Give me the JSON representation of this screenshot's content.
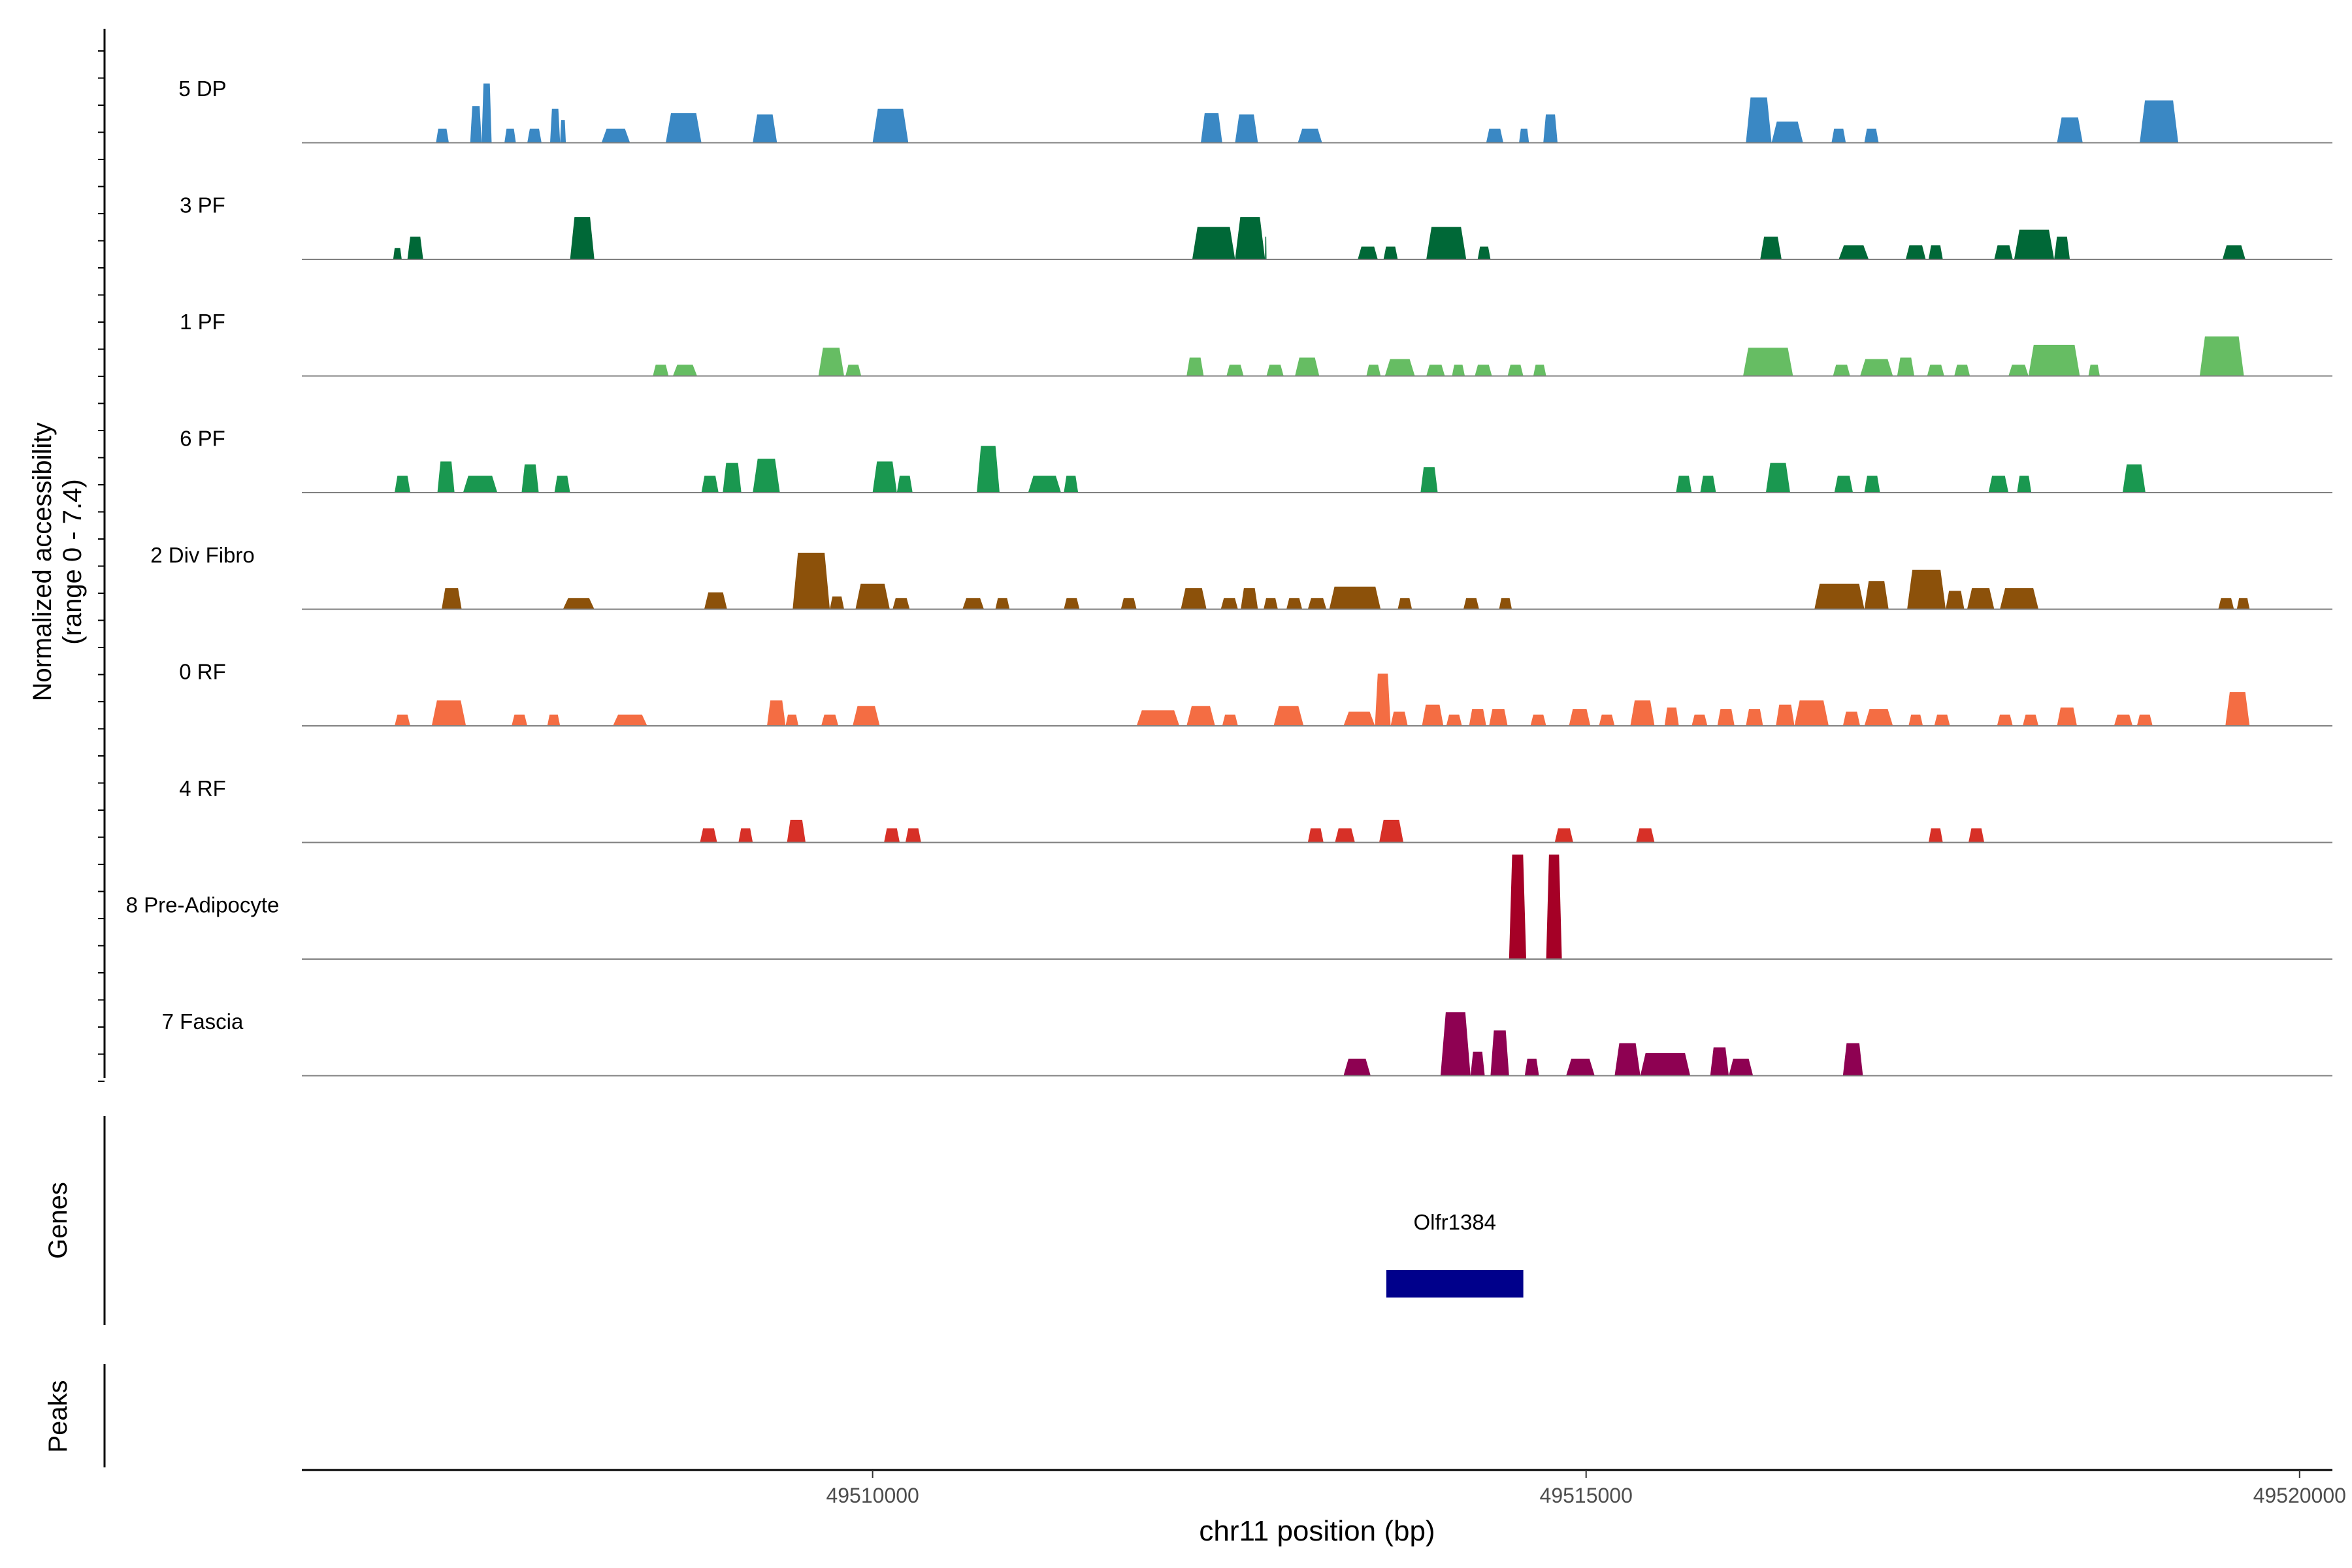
{
  "chart_data": {
    "type": "area",
    "title": "",
    "ylabel_lines": [
      "Normalized accessibility",
      "(range 0 - 7.4)"
    ],
    "xlabel": "chr11 position (bp)",
    "xlim": [
      49506000,
      49520230
    ],
    "ylim": [
      0,
      7.4
    ],
    "x_ticks": [
      49510000,
      49515000,
      49520000
    ],
    "x_tick_labels": [
      "49510000",
      "49515000",
      "49520000"
    ],
    "side_labels": {
      "genes": "Genes",
      "peaks": "Peaks"
    },
    "colors": {
      "5 DP": "#3a88c4",
      "3 PF": "#006837",
      "1 PF": "#66bd63",
      "6 PF": "#1a9850",
      "2 Div Fibro": "#8c510a",
      "0 RF": "#f46d43",
      "4 RF": "#d73027",
      "8 Pre-Adipocyte": "#a50026",
      "7 Fascia": "#8e0152",
      "gene": "#00008b",
      "baseline": "#808080"
    },
    "series": [
      {
        "name": "5 DP",
        "peaks": [
          [
            49506940,
            49507030,
            1.0
          ],
          [
            49507180,
            49507260,
            2.6
          ],
          [
            49507260,
            49507330,
            4.2
          ],
          [
            49507420,
            49507500,
            1.0
          ],
          [
            49507580,
            49507680,
            1.0
          ],
          [
            49507740,
            49507810,
            2.4
          ],
          [
            49507810,
            49507850,
            1.6
          ],
          [
            49508100,
            49508300,
            1.0
          ],
          [
            49508550,
            49508800,
            2.1
          ],
          [
            49509160,
            49509330,
            2.0
          ],
          [
            49510000,
            49510250,
            2.4
          ],
          [
            49512300,
            49512450,
            2.1
          ],
          [
            49512540,
            49512700,
            2.0
          ],
          [
            49512980,
            49513150,
            1.0
          ],
          [
            49514300,
            49514420,
            1.0
          ],
          [
            49514530,
            49514600,
            1.0
          ],
          [
            49514700,
            49514800,
            2.0
          ],
          [
            49516120,
            49516300,
            3.2
          ],
          [
            49516300,
            49516520,
            1.5
          ],
          [
            49516720,
            49516820,
            1.0
          ],
          [
            49516950,
            49517050,
            1.0
          ],
          [
            49518300,
            49518480,
            1.8
          ],
          [
            49518880,
            49519150,
            3.0
          ]
        ]
      },
      {
        "name": "3 PF",
        "peaks": [
          [
            49506640,
            49506700,
            0.8
          ],
          [
            49506740,
            49506850,
            1.6
          ],
          [
            49507880,
            49508050,
            3.0
          ],
          [
            49512240,
            49512540,
            2.3
          ],
          [
            49512540,
            49512750,
            3.0
          ],
          [
            49512750,
            49512760,
            1.6
          ],
          [
            49513400,
            49513540,
            0.9
          ],
          [
            49513580,
            49513680,
            0.9
          ],
          [
            49513880,
            49514160,
            2.3
          ],
          [
            49514240,
            49514330,
            0.9
          ],
          [
            49516220,
            49516370,
            1.6
          ],
          [
            49516770,
            49516980,
            1.0
          ],
          [
            49517240,
            49517380,
            1.0
          ],
          [
            49517400,
            49517500,
            1.0
          ],
          [
            49517860,
            49517990,
            1.0
          ],
          [
            49518000,
            49518280,
            2.1
          ],
          [
            49518280,
            49518390,
            1.6
          ],
          [
            49519460,
            49519620,
            1.0
          ]
        ]
      },
      {
        "name": "1 PF",
        "peaks": [
          [
            49508460,
            49508570,
            0.8
          ],
          [
            49508600,
            49508770,
            0.8
          ],
          [
            49509620,
            49509800,
            2.0
          ],
          [
            49509810,
            49509920,
            0.8
          ],
          [
            49512200,
            49512320,
            1.3
          ],
          [
            49512480,
            49512600,
            0.8
          ],
          [
            49512760,
            49512880,
            0.8
          ],
          [
            49512960,
            49513130,
            1.3
          ],
          [
            49513460,
            49513560,
            0.8
          ],
          [
            49513590,
            49513800,
            1.2
          ],
          [
            49513880,
            49514010,
            0.8
          ],
          [
            49514060,
            49514150,
            0.8
          ],
          [
            49514220,
            49514340,
            0.8
          ],
          [
            49514450,
            49514560,
            0.8
          ],
          [
            49514630,
            49514720,
            0.8
          ],
          [
            49516100,
            49516450,
            2.0
          ],
          [
            49516730,
            49516850,
            0.8
          ],
          [
            49516920,
            49517150,
            1.2
          ],
          [
            49517180,
            49517300,
            1.3
          ],
          [
            49517390,
            49517510,
            0.8
          ],
          [
            49517580,
            49517690,
            0.8
          ],
          [
            49517960,
            49518100,
            0.8
          ],
          [
            49518100,
            49518460,
            2.2
          ],
          [
            49518520,
            49518600,
            0.8
          ],
          [
            49519300,
            49519610,
            2.8
          ]
        ]
      },
      {
        "name": "6 PF",
        "peaks": [
          [
            49506650,
            49506760,
            1.2
          ],
          [
            49506950,
            49507070,
            2.2
          ],
          [
            49507130,
            49507370,
            1.2
          ],
          [
            49507540,
            49507660,
            2.0
          ],
          [
            49507770,
            49507880,
            1.2
          ],
          [
            49508800,
            49508920,
            1.2
          ],
          [
            49508950,
            49509080,
            2.1
          ],
          [
            49509160,
            49509350,
            2.4
          ],
          [
            49510000,
            49510170,
            2.2
          ],
          [
            49510170,
            49510280,
            1.2
          ],
          [
            49510730,
            49510890,
            3.3
          ],
          [
            49511090,
            49511320,
            1.2
          ],
          [
            49511340,
            49511440,
            1.2
          ],
          [
            49513840,
            49513960,
            1.8
          ],
          [
            49515630,
            49515740,
            1.2
          ],
          [
            49515800,
            49515910,
            1.2
          ],
          [
            49516260,
            49516430,
            2.1
          ],
          [
            49516740,
            49516870,
            1.2
          ],
          [
            49516950,
            49517060,
            1.2
          ],
          [
            49517820,
            49517960,
            1.2
          ],
          [
            49518020,
            49518120,
            1.2
          ],
          [
            49518760,
            49518920,
            2.0
          ]
        ]
      },
      {
        "name": "2 Div Fibro",
        "peaks": [
          [
            49506980,
            49507120,
            1.5
          ],
          [
            49507830,
            49508050,
            0.8
          ],
          [
            49508820,
            49508980,
            1.2
          ],
          [
            49509440,
            49509700,
            4.0
          ],
          [
            49509700,
            49509800,
            0.9
          ],
          [
            49509880,
            49510120,
            1.8
          ],
          [
            49510140,
            49510260,
            0.8
          ],
          [
            49510630,
            49510780,
            0.8
          ],
          [
            49510860,
            49510960,
            0.8
          ],
          [
            49511340,
            49511450,
            0.8
          ],
          [
            49511740,
            49511850,
            0.8
          ],
          [
            49512160,
            49512340,
            1.5
          ],
          [
            49512440,
            49512560,
            0.8
          ],
          [
            49512580,
            49512700,
            1.5
          ],
          [
            49512740,
            49512840,
            0.8
          ],
          [
            49512900,
            49513010,
            0.8
          ],
          [
            49513050,
            49513180,
            0.8
          ],
          [
            49513200,
            49513560,
            1.6
          ],
          [
            49513680,
            49513780,
            0.8
          ],
          [
            49514140,
            49514250,
            0.8
          ],
          [
            49514390,
            49514480,
            0.8
          ],
          [
            49516600,
            49516950,
            1.8
          ],
          [
            49516950,
            49517120,
            2.0
          ],
          [
            49517250,
            49517520,
            2.8
          ],
          [
            49517520,
            49517650,
            1.3
          ],
          [
            49517670,
            49517860,
            1.5
          ],
          [
            49517900,
            49518170,
            1.5
          ],
          [
            49519430,
            49519540,
            0.8
          ],
          [
            49519560,
            49519650,
            0.8
          ]
        ]
      },
      {
        "name": "0 RF",
        "peaks": [
          [
            49506650,
            49506760,
            0.8
          ],
          [
            49506910,
            49507150,
            1.8
          ],
          [
            49507470,
            49507580,
            0.8
          ],
          [
            49507720,
            49507810,
            0.8
          ],
          [
            49508180,
            49508420,
            0.8
          ],
          [
            49509260,
            49509390,
            1.8
          ],
          [
            49509390,
            49509480,
            0.8
          ],
          [
            49509640,
            49509760,
            0.8
          ],
          [
            49509860,
            49510050,
            1.4
          ],
          [
            49511850,
            49512150,
            1.1
          ],
          [
            49512200,
            49512400,
            1.4
          ],
          [
            49512450,
            49512560,
            0.8
          ],
          [
            49512810,
            49513020,
            1.4
          ],
          [
            49513300,
            49513520,
            1.0
          ],
          [
            49513520,
            49513630,
            3.7
          ],
          [
            49513630,
            49513750,
            1.0
          ],
          [
            49513850,
            49514000,
            1.5
          ],
          [
            49514020,
            49514130,
            0.8
          ],
          [
            49514180,
            49514300,
            1.2
          ],
          [
            49514320,
            49514450,
            1.2
          ],
          [
            49514610,
            49514720,
            0.8
          ],
          [
            49514880,
            49515030,
            1.2
          ],
          [
            49515090,
            49515200,
            0.8
          ],
          [
            49515310,
            49515480,
            1.8
          ],
          [
            49515550,
            49515650,
            1.3
          ],
          [
            49515740,
            49515850,
            0.8
          ],
          [
            49515920,
            49516040,
            1.2
          ],
          [
            49516120,
            49516240,
            1.2
          ],
          [
            49516330,
            49516460,
            1.5
          ],
          [
            49516460,
            49516700,
            1.8
          ],
          [
            49516800,
            49516920,
            1.0
          ],
          [
            49516950,
            49517150,
            1.2
          ],
          [
            49517260,
            49517360,
            0.8
          ],
          [
            49517440,
            49517550,
            0.8
          ],
          [
            49517880,
            49517990,
            0.8
          ],
          [
            49518060,
            49518170,
            0.8
          ],
          [
            49518300,
            49518440,
            1.3
          ],
          [
            49518700,
            49518830,
            0.8
          ],
          [
            49518860,
            49518970,
            0.8
          ],
          [
            49519480,
            49519650,
            2.4
          ]
        ]
      },
      {
        "name": "4 RF",
        "peaks": [
          [
            49508790,
            49508910,
            1.0
          ],
          [
            49509060,
            49509160,
            1.0
          ],
          [
            49509400,
            49509530,
            1.6
          ],
          [
            49510080,
            49510190,
            1.0
          ],
          [
            49510230,
            49510340,
            1.0
          ],
          [
            49513050,
            49513160,
            1.0
          ],
          [
            49513240,
            49513380,
            1.0
          ],
          [
            49513550,
            49513720,
            1.6
          ],
          [
            49514780,
            49514910,
            1.0
          ],
          [
            49515350,
            49515480,
            1.0
          ],
          [
            49517400,
            49517500,
            1.0
          ],
          [
            49517680,
            49517790,
            1.0
          ]
        ]
      },
      {
        "name": "8 Pre-Adipocyte",
        "peaks": [
          [
            49514460,
            49514580,
            7.4
          ],
          [
            49514720,
            49514830,
            7.4
          ]
        ]
      },
      {
        "name": "7 Fascia",
        "peaks": [
          [
            49513300,
            49513490,
            1.2
          ],
          [
            49513980,
            49514190,
            4.5
          ],
          [
            49514190,
            49514290,
            1.7
          ],
          [
            49514330,
            49514460,
            3.2
          ],
          [
            49514570,
            49514670,
            1.2
          ],
          [
            49514860,
            49515060,
            1.2
          ],
          [
            49515200,
            49515380,
            2.3
          ],
          [
            49515380,
            49515730,
            1.6
          ],
          [
            49515870,
            49516000,
            2.0
          ],
          [
            49516000,
            49516170,
            1.2
          ],
          [
            49516800,
            49516940,
            2.3
          ]
        ]
      }
    ],
    "genes": [
      {
        "name": "Olfr1384",
        "start": 49513600,
        "end": 49514560,
        "strand": "+"
      }
    ],
    "peaks": []
  }
}
